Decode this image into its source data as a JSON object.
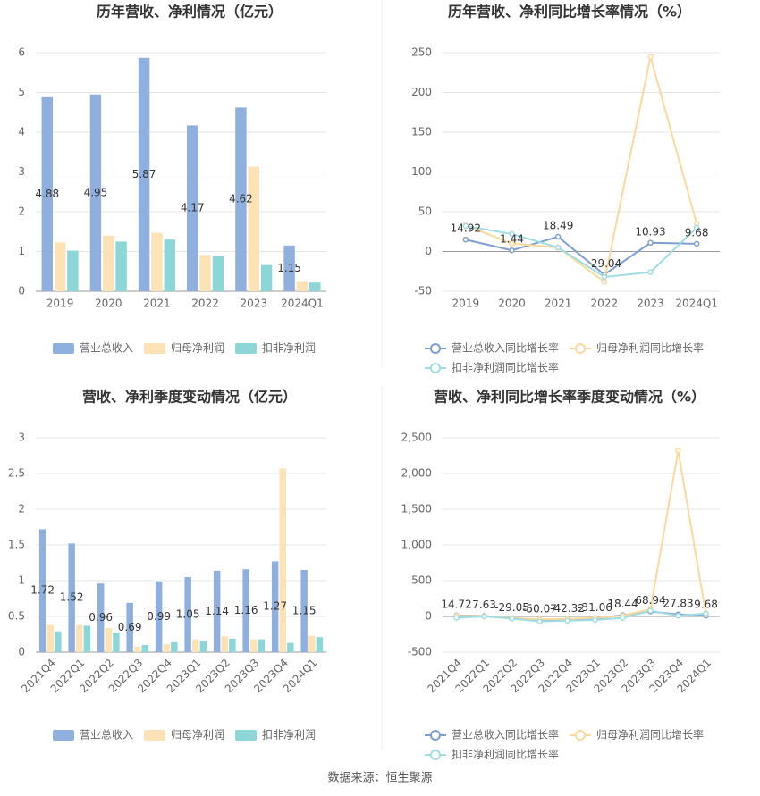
{
  "chart_data": [
    {
      "type": "bar",
      "title": "历年营收、净利情况（亿元）",
      "categories": [
        "2019",
        "2020",
        "2021",
        "2022",
        "2023",
        "2024Q1"
      ],
      "series": [
        {
          "name": "营业总收入",
          "color": "#8fb0de",
          "values": [
            4.88,
            4.95,
            5.87,
            4.17,
            4.62,
            1.15
          ]
        },
        {
          "name": "归母净利润",
          "color": "#fde2b6",
          "values": [
            1.23,
            1.4,
            1.47,
            0.91,
            3.13,
            0.24
          ]
        },
        {
          "name": "扣非净利润",
          "color": "#8dd6d8",
          "values": [
            1.02,
            1.25,
            1.3,
            0.88,
            0.66,
            0.22
          ]
        }
      ],
      "ylim": [
        0,
        6
      ],
      "yticks": [
        0,
        1,
        2,
        3,
        4,
        5,
        6
      ],
      "grid": true
    },
    {
      "type": "line",
      "title": "历年营收、净利同比增长率情况（%）",
      "categories": [
        "2019",
        "2020",
        "2021",
        "2022",
        "2023",
        "2024Q1"
      ],
      "series": [
        {
          "name": "营业总收入同比增长率",
          "color": "#7d9fd3",
          "values": [
            14.92,
            1.44,
            18.49,
            -29.04,
            10.93,
            9.68
          ]
        },
        {
          "name": "归母净利润同比增长率",
          "color": "#fcd89b",
          "values": [
            33,
            10,
            5,
            -38,
            245,
            35
          ]
        },
        {
          "name": "扣非净利润同比增长率",
          "color": "#9fdde3",
          "values": [
            32,
            22,
            5,
            -32,
            -26,
            30
          ]
        }
      ],
      "ylim": [
        -50,
        250
      ],
      "yticks": [
        -50,
        0,
        50,
        100,
        150,
        200,
        250
      ],
      "grid": true
    },
    {
      "type": "bar",
      "title": "营收、净利季度变动情况（亿元）",
      "categories": [
        "2021Q4",
        "2022Q1",
        "2022Q2",
        "2022Q3",
        "2022Q4",
        "2023Q1",
        "2023Q2",
        "2023Q3",
        "2023Q4",
        "2024Q1"
      ],
      "series": [
        {
          "name": "营业总收入",
          "color": "#8fb0de",
          "values": [
            1.72,
            1.52,
            0.96,
            0.69,
            0.99,
            1.05,
            1.14,
            1.16,
            1.27,
            1.15
          ]
        },
        {
          "name": "归母净利润",
          "color": "#fde2b6",
          "values": [
            0.38,
            0.38,
            0.34,
            0.08,
            0.11,
            0.18,
            0.22,
            0.18,
            2.57,
            0.23
          ]
        },
        {
          "name": "扣非净利润",
          "color": "#8dd6d8",
          "values": [
            0.29,
            0.37,
            0.27,
            0.1,
            0.14,
            0.16,
            0.19,
            0.18,
            0.13,
            0.21
          ]
        }
      ],
      "ylim": [
        0,
        3
      ],
      "yticks": [
        0,
        0.5,
        1,
        1.5,
        2,
        2.5,
        3
      ],
      "grid": true
    },
    {
      "type": "line",
      "title": "营收、净利同比增长率季度变动情况（%）",
      "categories": [
        "2021Q4",
        "2022Q1",
        "2022Q2",
        "2022Q3",
        "2022Q4",
        "2023Q1",
        "2023Q2",
        "2023Q3",
        "2023Q4",
        "2024Q1"
      ],
      "series": [
        {
          "name": "营业总收入同比增长率",
          "color": "#7d9fd3",
          "values": [
            14.72,
            7.63,
            -29.05,
            -50.07,
            -42.32,
            -31.06,
            18.44,
            68.94,
            27.83,
            9.68
          ]
        },
        {
          "name": "归母净利润同比增长率",
          "color": "#fcd89b",
          "values": [
            10,
            5,
            -20,
            -40,
            -35,
            -20,
            10,
            100,
            2320,
            30
          ]
        },
        {
          "name": "扣非净利润同比增长率",
          "color": "#9fdde3",
          "values": [
            -20,
            0,
            -30,
            -70,
            -60,
            -50,
            -20,
            80,
            10,
            40
          ]
        }
      ],
      "ylim": [
        -500,
        2500
      ],
      "yticks": [
        -500,
        0,
        500,
        {
          "value": 1000,
          "label": "1,000"
        },
        {
          "value": 1500,
          "label": "1,500"
        },
        {
          "value": 2000,
          "label": "2,000"
        },
        {
          "value": 2500,
          "label": "2,500"
        }
      ],
      "grid": true
    }
  ],
  "source": "数据来源：恒生聚源"
}
